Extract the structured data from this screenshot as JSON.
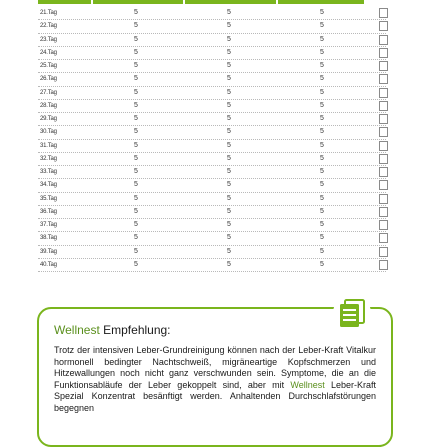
{
  "table": {
    "rows": [
      {
        "day": "21.Tag",
        "c1": "5",
        "c2": "5",
        "c3": "5"
      },
      {
        "day": "22.Tag",
        "c1": "5",
        "c2": "5",
        "c3": "5"
      },
      {
        "day": "23.Tag",
        "c1": "5",
        "c2": "5",
        "c3": "5"
      },
      {
        "day": "24.Tag",
        "c1": "5",
        "c2": "5",
        "c3": "5"
      },
      {
        "day": "25.Tag",
        "c1": "5",
        "c2": "5",
        "c3": "5"
      },
      {
        "day": "26.Tag",
        "c1": "5",
        "c2": "5",
        "c3": "5"
      },
      {
        "day": "27.Tag",
        "c1": "5",
        "c2": "5",
        "c3": "5"
      },
      {
        "day": "28.Tag",
        "c1": "5",
        "c2": "5",
        "c3": "5"
      },
      {
        "day": "29.Tag",
        "c1": "5",
        "c2": "5",
        "c3": "5"
      },
      {
        "day": "30.Tag",
        "c1": "5",
        "c2": "5",
        "c3": "5"
      },
      {
        "day": "31.Tag",
        "c1": "5",
        "c2": "5",
        "c3": "5"
      },
      {
        "day": "32.Tag",
        "c1": "5",
        "c2": "5",
        "c3": "5"
      },
      {
        "day": "33.Tag",
        "c1": "5",
        "c2": "5",
        "c3": "5"
      },
      {
        "day": "34.Tag",
        "c1": "5",
        "c2": "5",
        "c3": "5"
      },
      {
        "day": "35.Tag",
        "c1": "5",
        "c2": "5",
        "c3": "5"
      },
      {
        "day": "36.Tag",
        "c1": "5",
        "c2": "5",
        "c3": "5"
      },
      {
        "day": "37.Tag",
        "c1": "5",
        "c2": "5",
        "c3": "5"
      },
      {
        "day": "38.Tag",
        "c1": "5",
        "c2": "5",
        "c3": "5"
      },
      {
        "day": "39.Tag",
        "c1": "5",
        "c2": "5",
        "c3": "5"
      },
      {
        "day": "40.Tag",
        "c1": "5",
        "c2": "5",
        "c3": "5"
      }
    ]
  },
  "recommendation": {
    "brand": "Wellnest",
    "title_rest": " Empfehlung:",
    "text_1": "Trotz der intensiven Leber-Grundreinigung können nach der Leber-Kraft Vitalkur hormonell bedingter Nachtschweiß, migräneartige Kopfschmerzen und Hitzewallungen noch nicht ganz verschwunden sein. Symptome, die an die Funktionsabläufe der Leber gekoppelt sind, aber mit ",
    "brand_inline": "Wellnest",
    "text_2": " Leber-Kraft Spezial Konzentrat besänftigt werden. Anhaltenden Durchschlafstörungen begegnen"
  },
  "icons": {
    "document": "document-list-icon"
  },
  "colors": {
    "accent": "#7ab51d",
    "brand_text": "#5a8f1c"
  }
}
